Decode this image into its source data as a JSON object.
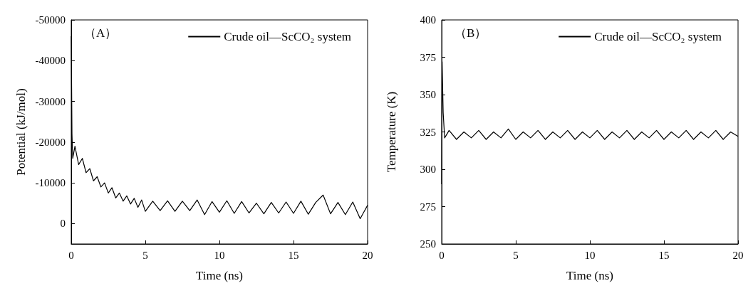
{
  "chart_data": [
    {
      "type": "line",
      "xlabel": "Time (ns)",
      "ylabel": "Potential (kJ/mol)",
      "annotations": [
        "（A）"
      ],
      "legend": "top right",
      "marker": "none",
      "line_style": "solid",
      "xlim": [
        0,
        20
      ],
      "xticks": [
        0,
        5,
        10,
        15,
        20
      ],
      "ylim": [
        5000,
        -50000
      ],
      "yticks": [
        -50000,
        -40000,
        -30000,
        -20000,
        -10000,
        0
      ],
      "series": [
        {
          "name": "Crude oil—ScCO₂ system",
          "color": "#000000",
          "x": [
            0,
            0.05,
            0.1,
            0.25,
            0.5,
            0.75,
            1,
            1.25,
            1.5,
            1.75,
            2,
            2.25,
            2.5,
            2.75,
            3,
            3.25,
            3.5,
            3.75,
            4,
            4.25,
            4.5,
            4.75,
            5,
            5.5,
            6,
            6.5,
            7,
            7.5,
            8,
            8.5,
            9,
            9.5,
            10,
            10.5,
            11,
            11.5,
            12,
            12.5,
            13,
            13.5,
            14,
            14.5,
            15,
            15.5,
            16,
            16.5,
            17,
            17.5,
            18,
            18.5,
            19,
            19.5,
            20
          ],
          "values": [
            -46000,
            -22000,
            -16000,
            -19000,
            -14500,
            -16000,
            -12500,
            -13500,
            -10500,
            -11500,
            -9000,
            -10000,
            -7500,
            -8800,
            -6300,
            -7500,
            -5500,
            -6800,
            -4800,
            -6200,
            -4000,
            -5800,
            -3000,
            -5500,
            -3200,
            -5600,
            -3000,
            -5500,
            -3200,
            -5800,
            -2200,
            -5400,
            -2800,
            -5600,
            -2500,
            -5400,
            -2600,
            -5000,
            -2400,
            -5200,
            -2600,
            -5300,
            -2500,
            -5500,
            -2300,
            -5200,
            -7000,
            -2400,
            -5200,
            -2200,
            -5300,
            -1200,
            -4500
          ]
        }
      ]
    },
    {
      "type": "line",
      "xlabel": "Time (ns)",
      "ylabel": "Temperature (K)",
      "annotations": [
        "（B）"
      ],
      "legend": "top right",
      "marker": "none",
      "line_style": "solid",
      "xlim": [
        0,
        20
      ],
      "xticks": [
        0,
        5,
        10,
        15,
        20
      ],
      "ylim": [
        250,
        400
      ],
      "yticks": [
        250,
        275,
        300,
        325,
        350,
        375,
        400
      ],
      "series": [
        {
          "name": "Crude oil—ScCO₂ system",
          "color": "#000000",
          "x": [
            0,
            0.03,
            0.1,
            0.2,
            0.5,
            1,
            1.5,
            2,
            2.5,
            3,
            3.5,
            4,
            4.5,
            5,
            5.5,
            6,
            6.5,
            7,
            7.5,
            8,
            8.5,
            9,
            9.5,
            10,
            10.5,
            11,
            11.5,
            12,
            12.5,
            13,
            13.5,
            14,
            14.5,
            15,
            15.5,
            16,
            16.5,
            17,
            17.5,
            18,
            18.5,
            19,
            19.5,
            20
          ],
          "values": [
            290,
            372,
            338,
            321,
            326,
            320,
            325,
            321,
            326,
            320,
            325,
            321,
            327,
            320,
            325,
            321,
            326,
            320,
            325,
            321,
            326,
            320,
            325,
            321,
            326,
            320,
            325,
            321,
            326,
            320,
            325,
            321,
            326,
            320,
            325,
            321,
            326,
            320,
            325,
            321,
            326,
            320,
            325,
            322
          ]
        }
      ]
    }
  ]
}
